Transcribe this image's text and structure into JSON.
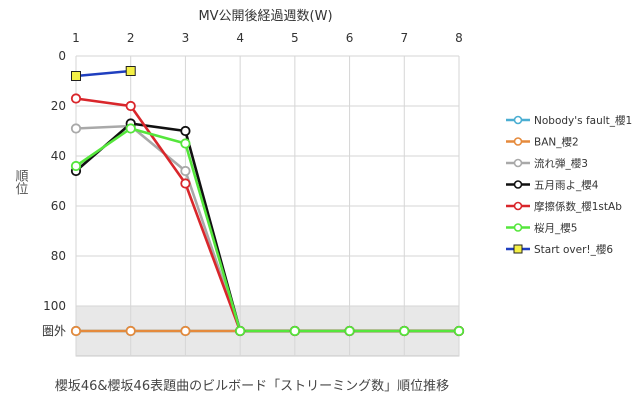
{
  "chart_data": {
    "type": "line",
    "title": "櫻坂46&櫻坂46表題曲のビルボード「ストリーミング数」順位推移",
    "top_axis_label": "MV公開後経過週数(W)",
    "ylabel": "順位",
    "x": [
      1,
      2,
      3,
      4,
      5,
      6,
      7,
      8
    ],
    "x_ticks": [
      "1",
      "2",
      "3",
      "4",
      "5",
      "6",
      "7",
      "8"
    ],
    "xlim": [
      1,
      8
    ],
    "ylim": [
      0,
      110
    ],
    "y_reversed": true,
    "y_ticks": [
      {
        "value": 0,
        "label": "0"
      },
      {
        "value": 20,
        "label": "20"
      },
      {
        "value": 40,
        "label": "40"
      },
      {
        "value": 60,
        "label": "60"
      },
      {
        "value": 80,
        "label": "80"
      },
      {
        "value": 100,
        "label": "100"
      },
      {
        "value": 110,
        "label": "圏外"
      }
    ],
    "out_of_chart_value": 110,
    "out_of_chart_band": [
      100,
      121
    ],
    "grid": true,
    "legend_position": "right",
    "band_color": "#e8e8e8",
    "series": [
      {
        "name": "Nobody's fault_櫻1",
        "color": "#4aaed2",
        "marker": "circle",
        "values": [
          110,
          110,
          110,
          110,
          110,
          110,
          110,
          110
        ]
      },
      {
        "name": "BAN_櫻2",
        "color": "#e58a3c",
        "marker": "circle",
        "values": [
          110,
          110,
          110,
          110,
          110,
          110,
          110,
          110
        ]
      },
      {
        "name": "流れ弾_櫻3",
        "color": "#a9a9a9",
        "marker": "circle",
        "values": [
          29,
          28,
          46,
          110,
          110,
          110,
          110,
          110
        ]
      },
      {
        "name": "五月雨よ_櫻4",
        "color": "#111111",
        "marker": "circle",
        "values": [
          46,
          27,
          30,
          110,
          110,
          110,
          110,
          110
        ]
      },
      {
        "name": "摩擦係数_櫻1stAb",
        "color": "#d9262b",
        "marker": "circle",
        "values": [
          17,
          20,
          51,
          110,
          110,
          110,
          110,
          110
        ]
      },
      {
        "name": "桜月_櫻5",
        "color": "#55e63c",
        "marker": "circle",
        "values": [
          44,
          29,
          35,
          110,
          110,
          110,
          110,
          110
        ]
      },
      {
        "name": "Start over!_櫻6",
        "color": "#1f3fbf",
        "marker": "square",
        "marker_fill": "#f4f046",
        "values": [
          8,
          6,
          null,
          null,
          null,
          null,
          null,
          null
        ]
      }
    ]
  }
}
